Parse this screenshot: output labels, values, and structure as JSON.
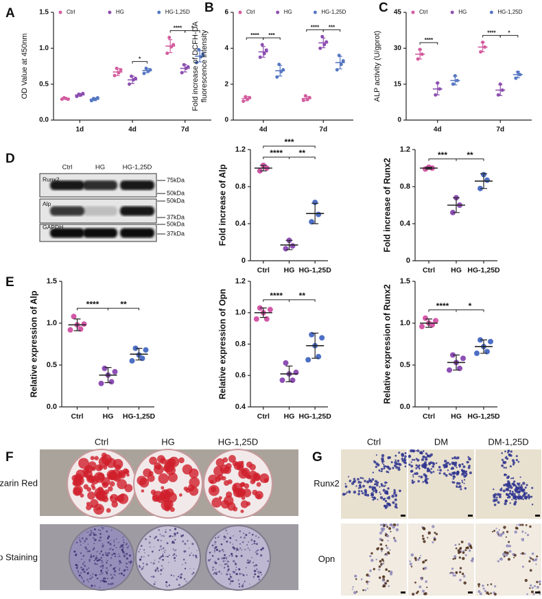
{
  "chart_data": [
    {
      "type": "dot",
      "panel": "A",
      "ylabel": "OD Value at 450nm",
      "categories": [
        "1d",
        "4d",
        "7d"
      ],
      "ylim": [
        0,
        1.5
      ],
      "yticks": [
        {
          "value": 0,
          "label": "0.0"
        },
        0.5,
        {
          "value": 1,
          "label": "1.0"
        },
        1.5
      ],
      "series": [
        {
          "name": "Ctrl",
          "color": "#d45c9f",
          "points": [
            [
              0.29,
              0.31,
              0.3,
              0.29
            ],
            [
              0.62,
              0.72,
              0.66,
              0.7
            ],
            [
              0.93,
              1.15,
              1.02,
              1.05
            ]
          ],
          "mean": [
            0.3,
            0.67,
            1.03
          ],
          "sd": [
            0.01,
            0.05,
            0.09
          ]
        },
        {
          "name": "HG",
          "color": "#8d4fb0",
          "points": [
            [
              0.33,
              0.36,
              0.35,
              0.37
            ],
            [
              0.5,
              0.61,
              0.56,
              0.58
            ],
            [
              0.66,
              0.77,
              0.72,
              0.74
            ]
          ],
          "mean": [
            0.35,
            0.56,
            0.72
          ],
          "sd": [
            0.02,
            0.05,
            0.05
          ]
        },
        {
          "name": "HG-1,25D",
          "color": "#5677c2",
          "points": [
            [
              0.27,
              0.3,
              0.29,
              0.31
            ],
            [
              0.65,
              0.72,
              0.68,
              0.7
            ],
            [
              0.8,
              0.98,
              0.88,
              0.92
            ]
          ],
          "mean": [
            0.29,
            0.69,
            0.89
          ],
          "sd": [
            0.02,
            0.03,
            0.08
          ]
        }
      ],
      "brackets": [
        {
          "pair": [
            [
              1,
              1
            ],
            [
              1,
              2
            ]
          ],
          "label": "*"
        },
        {
          "pair": [
            [
              2,
              0
            ],
            [
              2,
              1
            ]
          ],
          "label": "****"
        },
        {
          "pair": [
            [
              2,
              1
            ],
            [
              2,
              2
            ]
          ],
          "label": "*"
        }
      ]
    },
    {
      "type": "dot",
      "panel": "B",
      "ylabel": [
        "Fold increase of DCFH-DA",
        "fluorescence intensity"
      ],
      "categories": [
        "4d",
        "7d"
      ],
      "ylim": [
        0,
        6
      ],
      "yticks": [
        0,
        2,
        4,
        6
      ],
      "series": [
        {
          "name": "Ctrl",
          "color": "#d45c9f",
          "points": [
            [
              1.05,
              1.3,
              1.15,
              1.25
            ],
            [
              1.1,
              1.35,
              1.15,
              1.25
            ]
          ],
          "mean": [
            1.2,
            1.2
          ],
          "sd": [
            0.12,
            0.12
          ]
        },
        {
          "name": "HG",
          "color": "#8d4fb0",
          "points": [
            [
              3.5,
              4.2,
              3.7,
              3.9
            ],
            [
              4.0,
              4.65,
              4.2,
              4.35
            ]
          ],
          "mean": [
            3.8,
            4.3
          ],
          "sd": [
            0.3,
            0.27
          ]
        },
        {
          "name": "HG-1,25D",
          "color": "#5677c2",
          "points": [
            [
              2.4,
              3.1,
              2.7,
              2.8
            ],
            [
              2.8,
              3.6,
              3.1,
              3.3
            ]
          ],
          "mean": [
            2.75,
            3.2
          ],
          "sd": [
            0.3,
            0.35
          ]
        }
      ],
      "brackets": [
        {
          "pair": [
            [
              0,
              0
            ],
            [
              0,
              1
            ]
          ],
          "label": "****"
        },
        {
          "pair": [
            [
              0,
              1
            ],
            [
              0,
              2
            ]
          ],
          "label": "***"
        },
        {
          "pair": [
            [
              1,
              0
            ],
            [
              1,
              1
            ]
          ],
          "label": "****"
        },
        {
          "pair": [
            [
              1,
              1
            ],
            [
              1,
              2
            ]
          ],
          "label": "***"
        }
      ]
    },
    {
      "type": "dot",
      "panel": "C",
      "ylabel": "ALP activity (U/gprot)",
      "categories": [
        "4d",
        "7d"
      ],
      "ylim": [
        0,
        45
      ],
      "yticks": [
        0,
        15,
        30,
        45
      ],
      "series": [
        {
          "name": "Ctrl",
          "color": "#d45c9f",
          "points": [
            [
              25.5,
              29.5,
              27.5
            ],
            [
              28.5,
              32.5,
              30.5
            ]
          ],
          "mean": [
            27.5,
            30.5
          ],
          "sd": [
            2,
            2
          ]
        },
        {
          "name": "HG",
          "color": "#8d4fb0",
          "points": [
            [
              10.5,
              15.5,
              13
            ],
            [
              10.5,
              15,
              12.5
            ]
          ],
          "mean": [
            13,
            12.5
          ],
          "sd": [
            2.5,
            2.3
          ]
        },
        {
          "name": "HG-1,25D",
          "color": "#5677c2",
          "points": [
            [
              15,
              18.5,
              16.5
            ],
            [
              17.5,
              20,
              19
            ]
          ],
          "mean": [
            16.5,
            19
          ],
          "sd": [
            1.8,
            1.3
          ]
        }
      ],
      "brackets": [
        {
          "pair": [
            [
              0,
              0
            ],
            [
              0,
              1
            ]
          ],
          "label": "****"
        },
        {
          "pair": [
            [
              1,
              0
            ],
            [
              1,
              1
            ]
          ],
          "label": "****"
        },
        {
          "pair": [
            [
              1,
              1
            ],
            [
              1,
              2
            ]
          ],
          "label": "*"
        }
      ]
    },
    {
      "type": "dot",
      "ylabel": "Fold increase of Alp",
      "categories": [
        "Ctrl",
        "HG",
        "HG-1,25D"
      ],
      "colors": [
        "#d458a8",
        "#8e4fb5",
        "#4d6fc4"
      ],
      "ylim": [
        0,
        1.2
      ],
      "yticks": [
        0,
        0.4,
        0.8,
        1.2
      ],
      "points": [
        [
          0.97,
          1.03,
          1.0
        ],
        [
          0.13,
          0.22,
          0.16
        ],
        [
          0.42,
          0.63,
          0.5
        ]
      ],
      "mean": [
        1.0,
        0.17,
        0.51
      ],
      "sd": [
        0.03,
        0.05,
        0.11
      ],
      "brackets": [
        {
          "pair": [
            0,
            1
          ],
          "label": "****"
        },
        {
          "pair": [
            1,
            2
          ],
          "label": "**"
        },
        {
          "pair": [
            0,
            2
          ],
          "label": "***"
        }
      ]
    },
    {
      "type": "dot",
      "ylabel": "Fold increase of Runx2",
      "categories": [
        "Ctrl",
        "HG",
        "HG-1,25D"
      ],
      "colors": [
        "#d458a8",
        "#8e4fb5",
        "#4d6fc4"
      ],
      "ylim": [
        0,
        1.2
      ],
      "yticks": [
        0,
        0.4,
        0.8,
        1.2
      ],
      "points": [
        [
          0.99,
          1.01,
          1.0
        ],
        [
          0.52,
          0.68,
          0.6
        ],
        [
          0.78,
          0.93,
          0.87
        ]
      ],
      "mean": [
        1.0,
        0.6,
        0.86
      ],
      "sd": [
        0.01,
        0.08,
        0.08
      ],
      "brackets": [
        {
          "pair": [
            0,
            1
          ],
          "label": "***"
        },
        {
          "pair": [
            1,
            2
          ],
          "label": "**"
        }
      ]
    },
    {
      "type": "dot",
      "panel": "E",
      "ylabel": "Relative expression of Alp",
      "categories": [
        "Ctrl",
        "HG",
        "HG-1,25D"
      ],
      "colors": [
        "#d458a8",
        "#8e4fb5",
        "#4d6fc4"
      ],
      "ylim": [
        0,
        1.5
      ],
      "yticks": [
        {
          "value": 0,
          "label": "0.0"
        },
        0.5,
        {
          "value": 1,
          "label": "1.0"
        },
        1.5
      ],
      "points": [
        [
          0.92,
          1.08,
          0.98,
          0.93,
          0.99
        ],
        [
          0.28,
          0.46,
          0.38,
          0.3,
          0.42
        ],
        [
          0.55,
          0.7,
          0.62,
          0.58,
          0.68
        ]
      ],
      "mean": [
        0.98,
        0.38,
        0.63
      ],
      "sd": [
        0.07,
        0.09,
        0.07
      ],
      "brackets": [
        {
          "pair": [
            0,
            1
          ],
          "label": "****"
        },
        {
          "pair": [
            1,
            2
          ],
          "label": "**"
        }
      ]
    },
    {
      "type": "dot",
      "ylabel": "Relative expression of Opn",
      "categories": [
        "Ctrl",
        "HG",
        "HG-1,25D"
      ],
      "colors": [
        "#d458a8",
        "#8e4fb5",
        "#4d6fc4"
      ],
      "ylim": [
        0.4,
        1.2
      ],
      "yticks": [
        0.4,
        0.6,
        0.8,
        {
          "value": 1,
          "label": "1.0"
        },
        1.2
      ],
      "points": [
        [
          0.96,
          1.03,
          1.0,
          0.96,
          1.02
        ],
        [
          0.57,
          0.68,
          0.61,
          0.57,
          0.62
        ],
        [
          0.7,
          0.86,
          0.79,
          0.72,
          0.84
        ]
      ],
      "mean": [
        1.0,
        0.61,
        0.79
      ],
      "sd": [
        0.03,
        0.05,
        0.08
      ],
      "brackets": [
        {
          "pair": [
            0,
            1
          ],
          "label": "****"
        },
        {
          "pair": [
            1,
            2
          ],
          "label": "**"
        }
      ]
    },
    {
      "type": "dot",
      "ylabel": "Relative expression of Runx2",
      "categories": [
        "Ctrl",
        "HG",
        "HG-1,25D"
      ],
      "colors": [
        "#d458a8",
        "#8e4fb5",
        "#4d6fc4"
      ],
      "ylim": [
        0,
        1.5
      ],
      "yticks": [
        {
          "value": 0,
          "label": "0.0"
        },
        0.5,
        {
          "value": 1,
          "label": "1.0"
        },
        1.5
      ],
      "points": [
        [
          0.96,
          1.06,
          1.0,
          0.98,
          1.03
        ],
        [
          0.44,
          0.62,
          0.53,
          0.46,
          0.58
        ],
        [
          0.64,
          0.8,
          0.72,
          0.66,
          0.78
        ]
      ],
      "mean": [
        1.0,
        0.53,
        0.72
      ],
      "sd": [
        0.05,
        0.09,
        0.08
      ],
      "brackets": [
        {
          "pair": [
            0,
            1
          ],
          "label": "****"
        },
        {
          "pair": [
            1,
            2
          ],
          "label": "*"
        }
      ]
    }
  ],
  "blot": {
    "panel": "D",
    "lanes": [
      "Ctrl",
      "HG",
      "HG-1,25D"
    ],
    "rows": [
      {
        "name": "Runx2",
        "markers": [
          "75kDa",
          "50kDa"
        ]
      },
      {
        "name": "Alp",
        "markers": [
          "50kDa",
          "37kDa"
        ]
      },
      {
        "name": "GAPDH",
        "markers": [
          "50kDa",
          "37kDa"
        ]
      }
    ]
  },
  "mineralization": {
    "panel": "F",
    "columns": [
      "Ctrl",
      "HG",
      "HG-1,25D"
    ],
    "rows": [
      "Alizarin Red",
      "Alp Staining"
    ]
  },
  "ihc": {
    "panel": "G",
    "columns": [
      "Ctrl",
      "DM",
      "DM-1,25D"
    ],
    "rows": [
      "Runx2",
      "Opn"
    ]
  }
}
